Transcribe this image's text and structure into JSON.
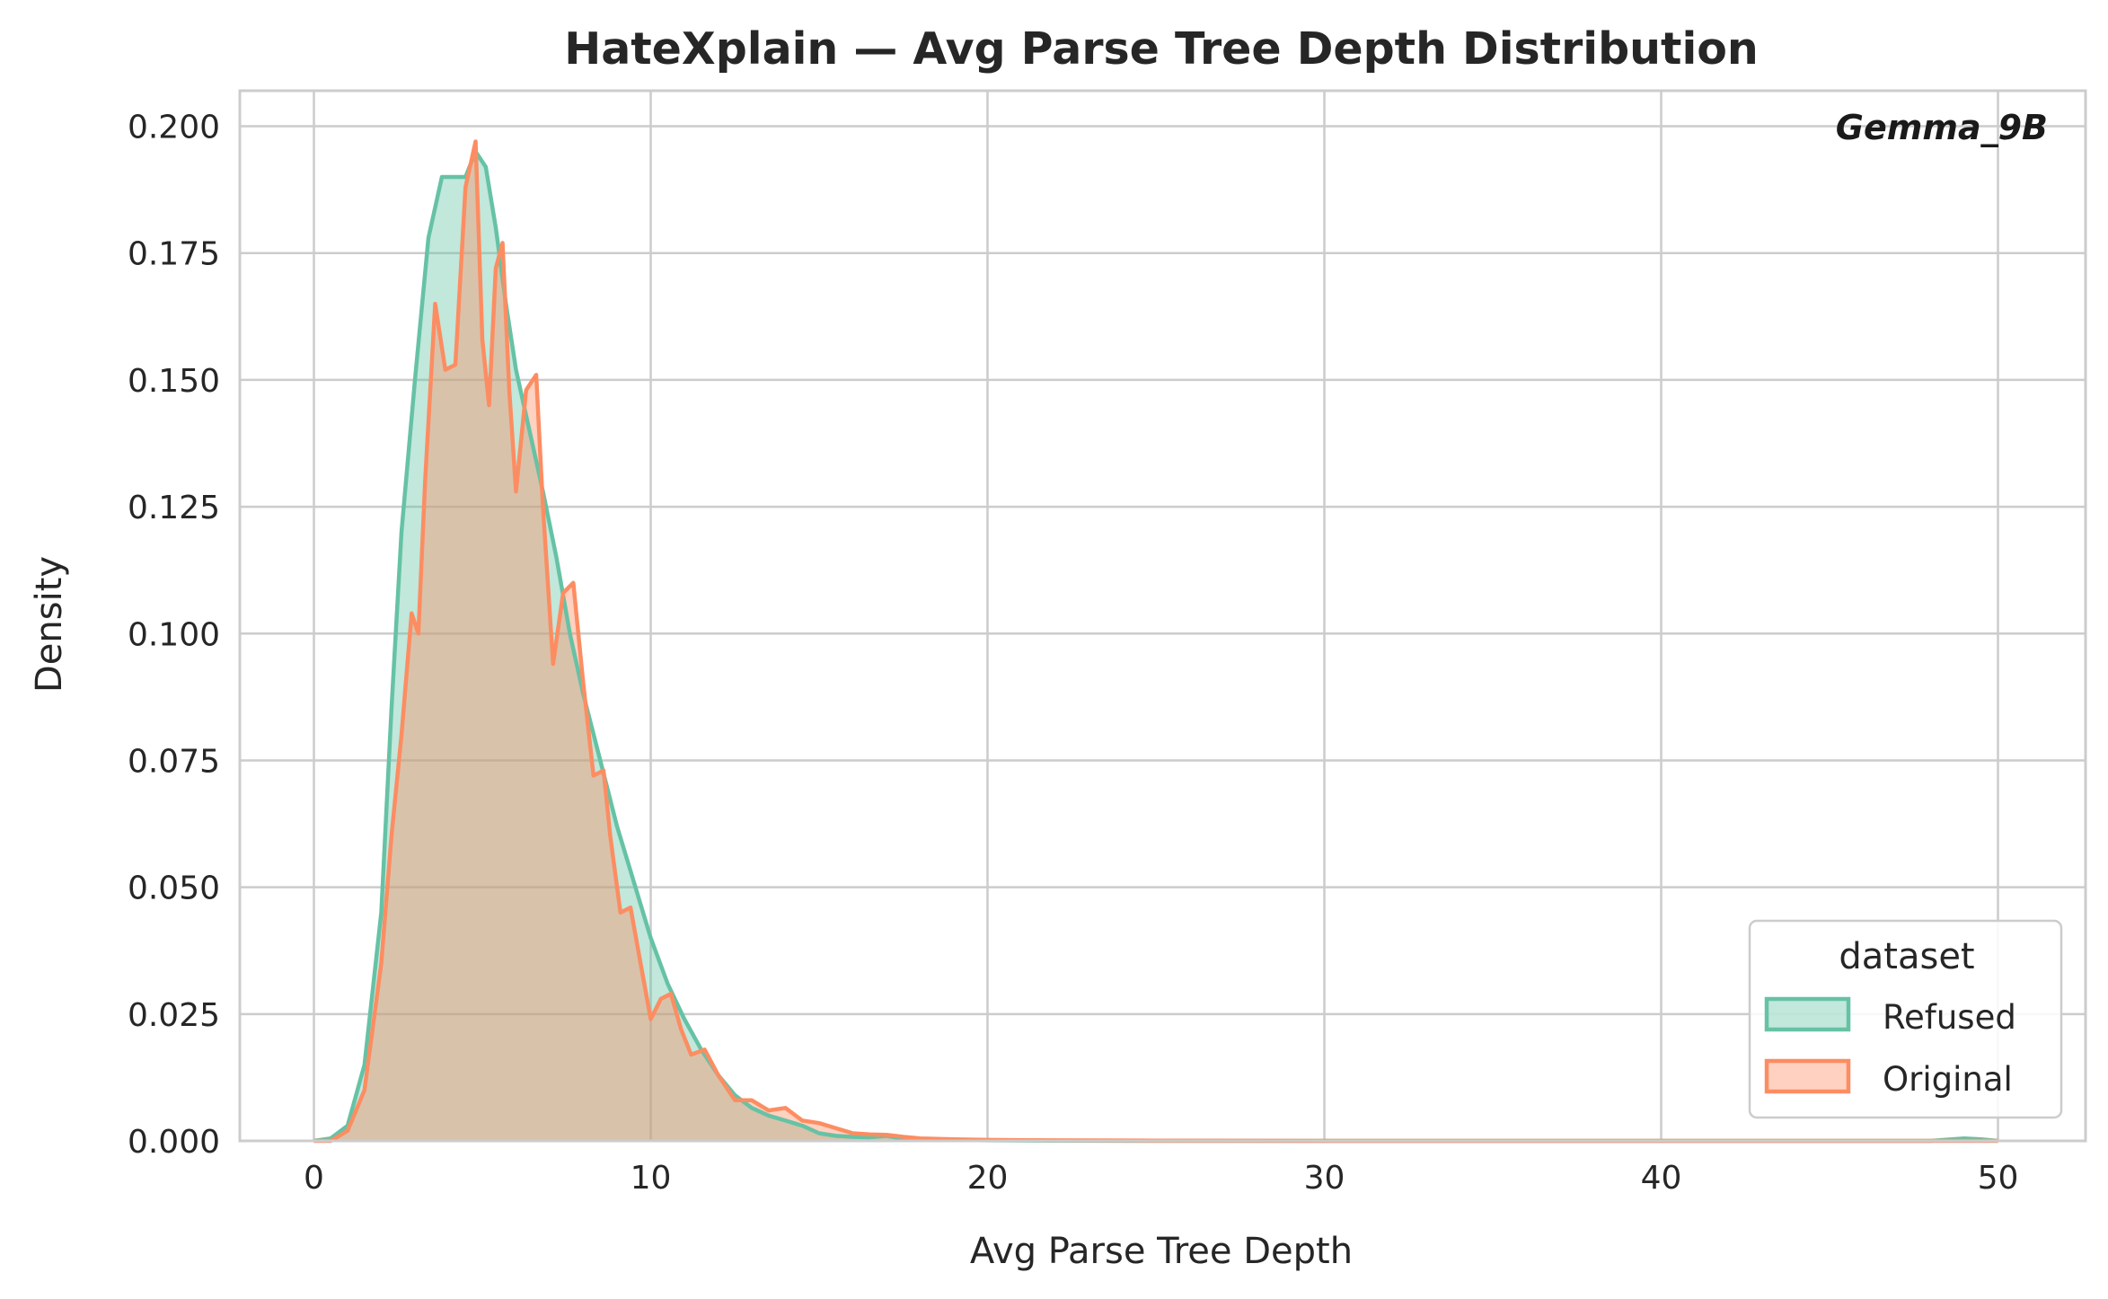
{
  "chart_data": {
    "type": "area",
    "title": "HateXplain — Avg Parse Tree Depth Distribution",
    "xlabel": "Avg Parse Tree Depth",
    "ylabel": "Density",
    "annotation": "Gemma_9B",
    "xlim": [
      -2.2,
      52.6
    ],
    "ylim": [
      0,
      0.207
    ],
    "xticks": [
      0,
      10,
      20,
      30,
      40,
      50
    ],
    "xtick_labels": [
      "0",
      "10",
      "20",
      "30",
      "40",
      "50"
    ],
    "yticks": [
      0,
      0.025,
      0.05,
      0.075,
      0.1,
      0.125,
      0.15,
      0.175,
      0.2
    ],
    "ytick_labels": [
      "0.000",
      "0.025",
      "0.050",
      "0.075",
      "0.100",
      "0.125",
      "0.150",
      "0.175",
      "0.200"
    ],
    "grid": true,
    "legend": {
      "title": "dataset",
      "placement": "lower-right",
      "entries": [
        "Refused",
        "Original"
      ]
    },
    "series": [
      {
        "name": "Refused",
        "color": "#66c2a5",
        "x": [
          0,
          0.5,
          1.0,
          1.5,
          2.0,
          2.3,
          2.6,
          3.0,
          3.4,
          3.8,
          4.1,
          4.5,
          4.8,
          5.1,
          5.4,
          5.7,
          6.0,
          6.4,
          6.8,
          7.2,
          7.6,
          8.0,
          8.5,
          9.0,
          9.5,
          10.0,
          10.5,
          11.0,
          11.5,
          12.0,
          12.5,
          13.0,
          13.5,
          14.0,
          14.5,
          15.0,
          15.5,
          16.0,
          16.5,
          17.0,
          17.5,
          18.0,
          19.0,
          20.0,
          22.0,
          25.0,
          30.0,
          35.0,
          40.0,
          45.0,
          48.0,
          49.0,
          49.5,
          50.0
        ],
        "y": [
          0,
          0.0005,
          0.003,
          0.015,
          0.045,
          0.085,
          0.12,
          0.15,
          0.178,
          0.19,
          0.19,
          0.19,
          0.195,
          0.192,
          0.18,
          0.165,
          0.152,
          0.14,
          0.128,
          0.115,
          0.1,
          0.088,
          0.075,
          0.062,
          0.051,
          0.04,
          0.031,
          0.024,
          0.018,
          0.013,
          0.009,
          0.0065,
          0.005,
          0.004,
          0.003,
          0.0015,
          0.001,
          0.0008,
          0.0007,
          0.001,
          0.0004,
          0.0003,
          0.0002,
          0.0001,
          5e-05,
          0,
          0,
          0,
          0,
          0,
          0,
          0.0005,
          0.0003,
          0
        ]
      },
      {
        "name": "Original",
        "color": "#fc8d62",
        "x": [
          0,
          0.5,
          1.0,
          1.5,
          2.0,
          2.3,
          2.6,
          2.9,
          3.1,
          3.3,
          3.6,
          3.9,
          4.2,
          4.5,
          4.8,
          5.0,
          5.2,
          5.4,
          5.6,
          5.8,
          6.0,
          6.3,
          6.6,
          6.8,
          7.1,
          7.4,
          7.7,
          8.0,
          8.3,
          8.6,
          8.8,
          9.1,
          9.4,
          9.7,
          10.0,
          10.3,
          10.6,
          10.9,
          11.2,
          11.6,
          12.0,
          12.5,
          13.0,
          13.5,
          14.0,
          14.5,
          15.0,
          15.5,
          16.0,
          16.5,
          17.0,
          17.5,
          18.0,
          19.0,
          20.0,
          22.0,
          25.0,
          30.0,
          40.0,
          50.0
        ],
        "y": [
          0,
          0,
          0.002,
          0.01,
          0.035,
          0.06,
          0.08,
          0.104,
          0.1,
          0.13,
          0.165,
          0.152,
          0.153,
          0.188,
          0.197,
          0.158,
          0.145,
          0.172,
          0.177,
          0.148,
          0.128,
          0.148,
          0.151,
          0.125,
          0.094,
          0.108,
          0.11,
          0.09,
          0.072,
          0.073,
          0.06,
          0.045,
          0.046,
          0.035,
          0.024,
          0.028,
          0.029,
          0.022,
          0.017,
          0.018,
          0.013,
          0.008,
          0.008,
          0.006,
          0.0065,
          0.004,
          0.0035,
          0.0025,
          0.0015,
          0.0013,
          0.0012,
          0.0008,
          0.0005,
          0.0003,
          0.0002,
          0.0001,
          5e-05,
          0,
          0,
          0
        ]
      }
    ]
  }
}
